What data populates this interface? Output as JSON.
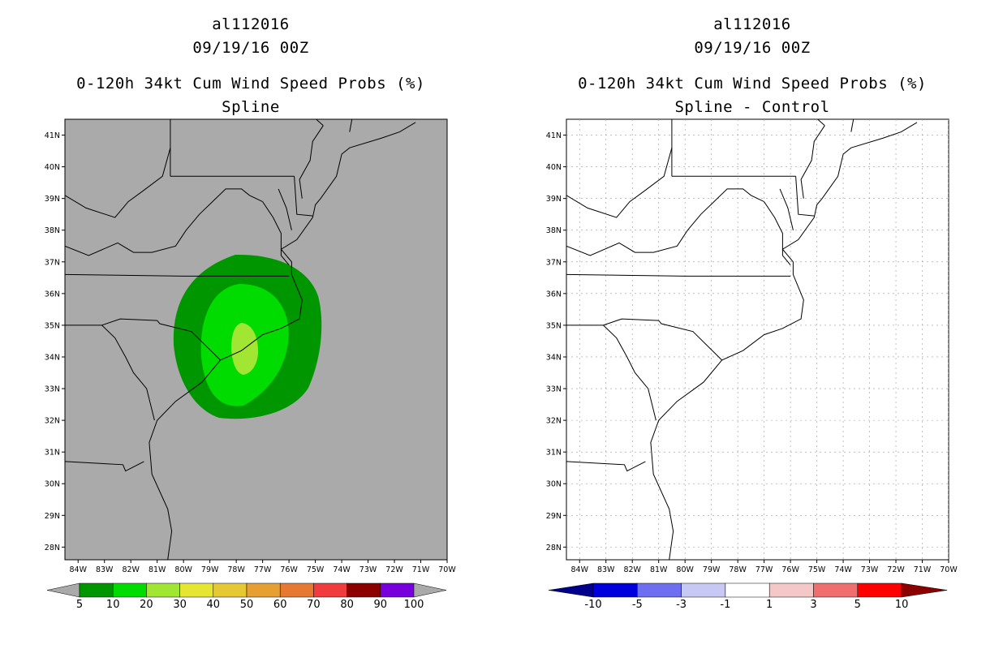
{
  "left": {
    "title_lines": [
      "al112016",
      "09/19/16 00Z",
      "0-120h 34kt Cum Wind Speed Probs (%)",
      "Spline"
    ],
    "colorbar_labels": [
      "5",
      "10",
      "20",
      "30",
      "40",
      "50",
      "60",
      "70",
      "80",
      "90",
      "100"
    ],
    "colorbar_colors": [
      "#009600",
      "#00dc00",
      "#a0e632",
      "#e6e632",
      "#e6c832",
      "#e6a032",
      "#e67832",
      "#f03c3c",
      "#8c0000",
      "#7800dc"
    ]
  },
  "right": {
    "title_lines": [
      "al112016",
      "09/19/16 00Z",
      "0-120h 34kt Cum Wind Speed Probs (%)",
      "Spline - Control"
    ],
    "colorbar_labels": [
      "-10",
      "-5",
      "-3",
      "-1",
      "1",
      "3",
      "5",
      "10"
    ],
    "colorbar_colors": [
      "#0000dc",
      "#6e6ef0",
      "#c8c8f5",
      "#ffffff",
      "#f5c8c8",
      "#f06e6e",
      "#ff0000"
    ],
    "colorbar_end_colors": [
      "#00008c",
      "#8c0000"
    ]
  },
  "chart_data": [
    {
      "type": "heatmap",
      "title": "0-120h 34kt Cum Wind Speed Probs (%) Spline",
      "lon_labels": [
        "84W",
        "83W",
        "82W",
        "81W",
        "80W",
        "79W",
        "78W",
        "77W",
        "76W",
        "75W",
        "74W",
        "73W",
        "72W",
        "71W",
        "70W"
      ],
      "lat_labels": [
        "28N",
        "29N",
        "30N",
        "31N",
        "32N",
        "33N",
        "34N",
        "35N",
        "36N",
        "37N",
        "38N",
        "39N",
        "40N",
        "41N"
      ],
      "lon_range": [
        -84.5,
        -70
      ],
      "lat_range": [
        27.6,
        41.5
      ],
      "contours": [
        {
          "level": "5-10",
          "color": "#009600"
        },
        {
          "level": "10-20",
          "color": "#00dc00"
        },
        {
          "level": "20-30",
          "color": "#a0e632"
        }
      ]
    },
    {
      "type": "heatmap",
      "title": "0-120h 34kt Cum Wind Speed Probs (%) Spline - Control",
      "lon_labels": [
        "84W",
        "83W",
        "82W",
        "81W",
        "80W",
        "79W",
        "78W",
        "77W",
        "76W",
        "75W",
        "74W",
        "73W",
        "72W",
        "71W",
        "70W"
      ],
      "lat_labels": [
        "28N",
        "29N",
        "30N",
        "31N",
        "32N",
        "33N",
        "34N",
        "35N",
        "36N",
        "37N",
        "38N",
        "39N",
        "40N",
        "41N"
      ],
      "lon_range": [
        -84.5,
        -70
      ],
      "lat_range": [
        27.6,
        41.5
      ],
      "contours": []
    }
  ]
}
